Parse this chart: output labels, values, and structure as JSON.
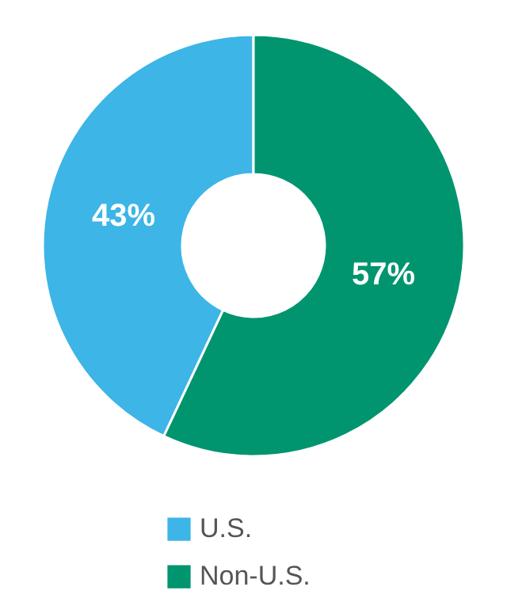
{
  "chart_data": {
    "type": "donut",
    "categories": [
      "U.S.",
      "Non-U.S."
    ],
    "values": [
      43,
      57
    ],
    "colors": [
      "#3db5e6",
      "#00956f"
    ],
    "value_labels": [
      "43%",
      "57%"
    ],
    "legend": "bottom"
  }
}
